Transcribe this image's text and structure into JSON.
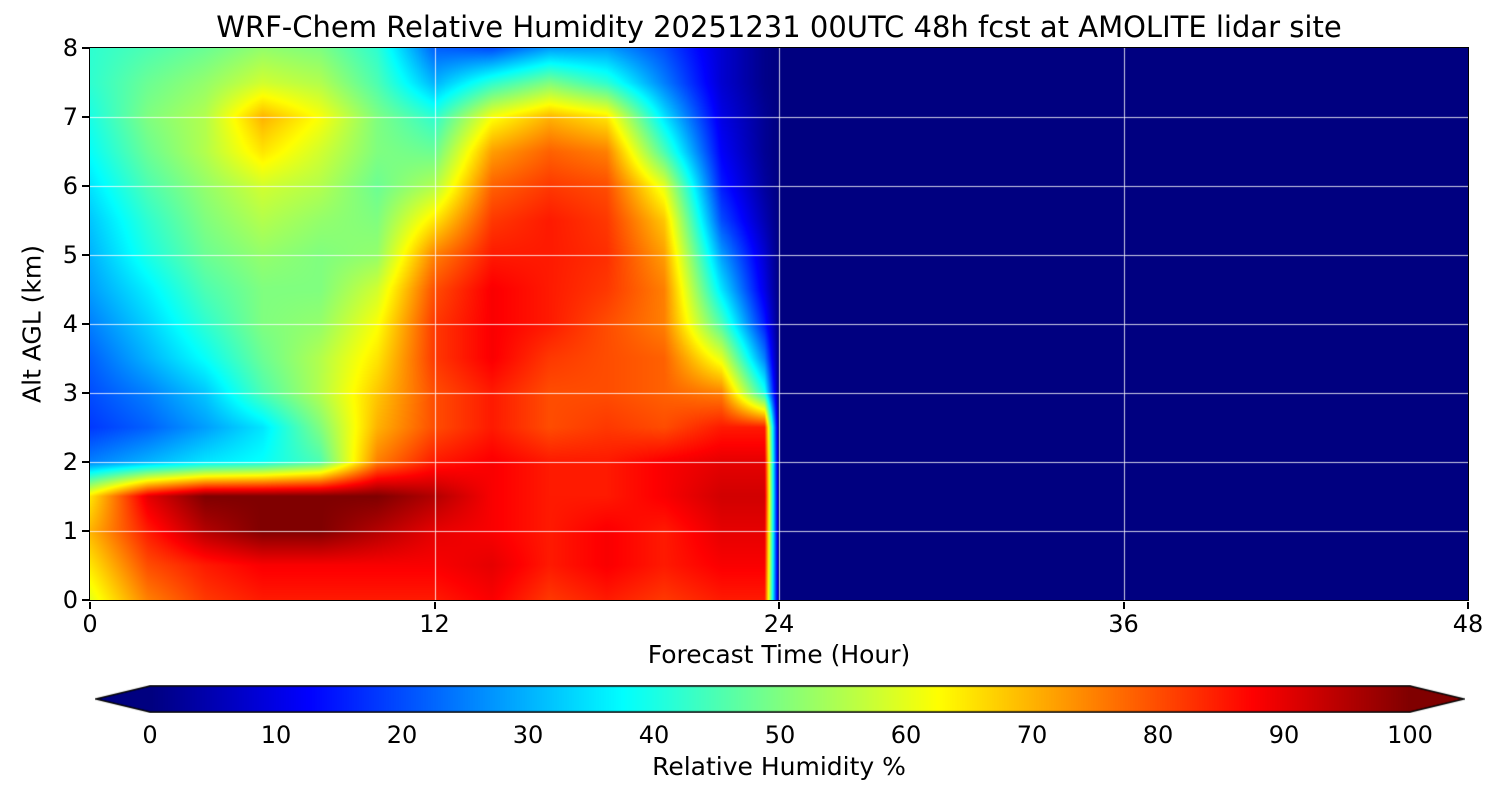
{
  "title_text": "WRF-Chem Relative Humidity 20251231 00UTC 48h fcst at AMOLITE lidar site",
  "axes": {
    "xlabel": "Forecast Time (Hour)",
    "ylabel": "Alt AGL (km)",
    "x_ticks": [
      0,
      12,
      24,
      36,
      48
    ],
    "y_ticks": [
      0,
      1,
      2,
      3,
      4,
      5,
      6,
      7,
      8
    ],
    "x_range": [
      0,
      48
    ],
    "y_range": [
      0,
      8
    ],
    "grid": true
  },
  "colorbar": {
    "label": "Relative Humidity %",
    "ticks": [
      0,
      10,
      20,
      30,
      40,
      50,
      60,
      70,
      80,
      90,
      100
    ],
    "range": [
      0,
      100
    ],
    "colormap": "jet",
    "extend": "both"
  },
  "colors": {
    "background": "#ffffff",
    "no_data_fill": "#000080",
    "grid_line": "#ffffff",
    "frame": "#000000",
    "extend_low": "#000080",
    "extend_high": "#800000"
  },
  "chart_data": {
    "type": "heatmap",
    "title": "WRF-Chem Relative Humidity 20251231 00UTC 48h fcst at AMOLITE lidar site",
    "xlabel": "Forecast Time (Hour)",
    "ylabel": "Alt AGL (km)",
    "colorbar_label": "Relative Humidity %",
    "colormap": "jet",
    "vmin": 0,
    "vmax": 100,
    "xlim": [
      0,
      48
    ],
    "ylim": [
      0,
      8
    ],
    "x_hours": [
      0,
      2,
      4,
      6,
      8,
      10,
      12,
      14,
      16,
      18,
      20,
      22,
      23.5,
      24,
      30,
      36,
      42,
      48
    ],
    "y_alt_km": [
      0,
      0.5,
      1,
      1.5,
      2,
      2.5,
      3,
      3.5,
      4,
      4.5,
      5,
      5.5,
      6,
      6.5,
      7,
      7.5,
      8
    ],
    "values_percent": [
      [
        60,
        75,
        82,
        85,
        85,
        85,
        85,
        88,
        82,
        85,
        82,
        85,
        85,
        0,
        0,
        0,
        0,
        0
      ],
      [
        65,
        80,
        85,
        88,
        88,
        88,
        88,
        90,
        85,
        88,
        85,
        88,
        88,
        0,
        0,
        0,
        0,
        0
      ],
      [
        70,
        85,
        95,
        100,
        100,
        95,
        90,
        88,
        85,
        88,
        85,
        90,
        90,
        0,
        0,
        0,
        0,
        0
      ],
      [
        65,
        90,
        100,
        100,
        100,
        100,
        95,
        88,
        85,
        85,
        88,
        92,
        92,
        0,
        0,
        0,
        0,
        0
      ],
      [
        25,
        30,
        35,
        38,
        45,
        75,
        85,
        88,
        85,
        85,
        88,
        90,
        90,
        0,
        0,
        0,
        0,
        0
      ],
      [
        18,
        22,
        28,
        35,
        50,
        70,
        80,
        85,
        80,
        82,
        80,
        85,
        85,
        0,
        0,
        0,
        0,
        0
      ],
      [
        20,
        25,
        32,
        45,
        55,
        68,
        80,
        85,
        80,
        80,
        78,
        75,
        40,
        0,
        0,
        0,
        0,
        0
      ],
      [
        22,
        30,
        38,
        48,
        55,
        65,
        82,
        88,
        82,
        80,
        78,
        60,
        25,
        0,
        0,
        0,
        0,
        0
      ],
      [
        25,
        33,
        42,
        50,
        52,
        62,
        82,
        88,
        85,
        80,
        75,
        45,
        15,
        0,
        0,
        0,
        0,
        0
      ],
      [
        28,
        36,
        45,
        50,
        50,
        58,
        80,
        88,
        85,
        82,
        75,
        35,
        10,
        0,
        0,
        0,
        0,
        0
      ],
      [
        30,
        40,
        48,
        52,
        50,
        52,
        75,
        85,
        85,
        83,
        72,
        28,
        8,
        0,
        0,
        0,
        0,
        0
      ],
      [
        32,
        42,
        50,
        55,
        52,
        50,
        65,
        82,
        85,
        82,
        68,
        20,
        5,
        0,
        0,
        0,
        0,
        0
      ],
      [
        35,
        45,
        52,
        58,
        55,
        48,
        55,
        78,
        82,
        80,
        60,
        15,
        3,
        0,
        0,
        0,
        0,
        0
      ],
      [
        38,
        48,
        55,
        65,
        58,
        50,
        48,
        72,
        78,
        75,
        45,
        12,
        2,
        0,
        0,
        0,
        0,
        0
      ],
      [
        40,
        50,
        55,
        70,
        62,
        50,
        42,
        62,
        70,
        65,
        35,
        10,
        2,
        0,
        0,
        0,
        0,
        0
      ],
      [
        42,
        48,
        52,
        58,
        55,
        45,
        30,
        42,
        50,
        42,
        25,
        8,
        1,
        0,
        0,
        0,
        0,
        0
      ],
      [
        42,
        45,
        48,
        52,
        50,
        42,
        22,
        20,
        28,
        28,
        20,
        8,
        1,
        0,
        0,
        0,
        0,
        0
      ]
    ],
    "note": "rows ordered from 0 km (first) to 8 km (last); field drops to minimum (dark blue) from hour ~23.5 through 48"
  }
}
